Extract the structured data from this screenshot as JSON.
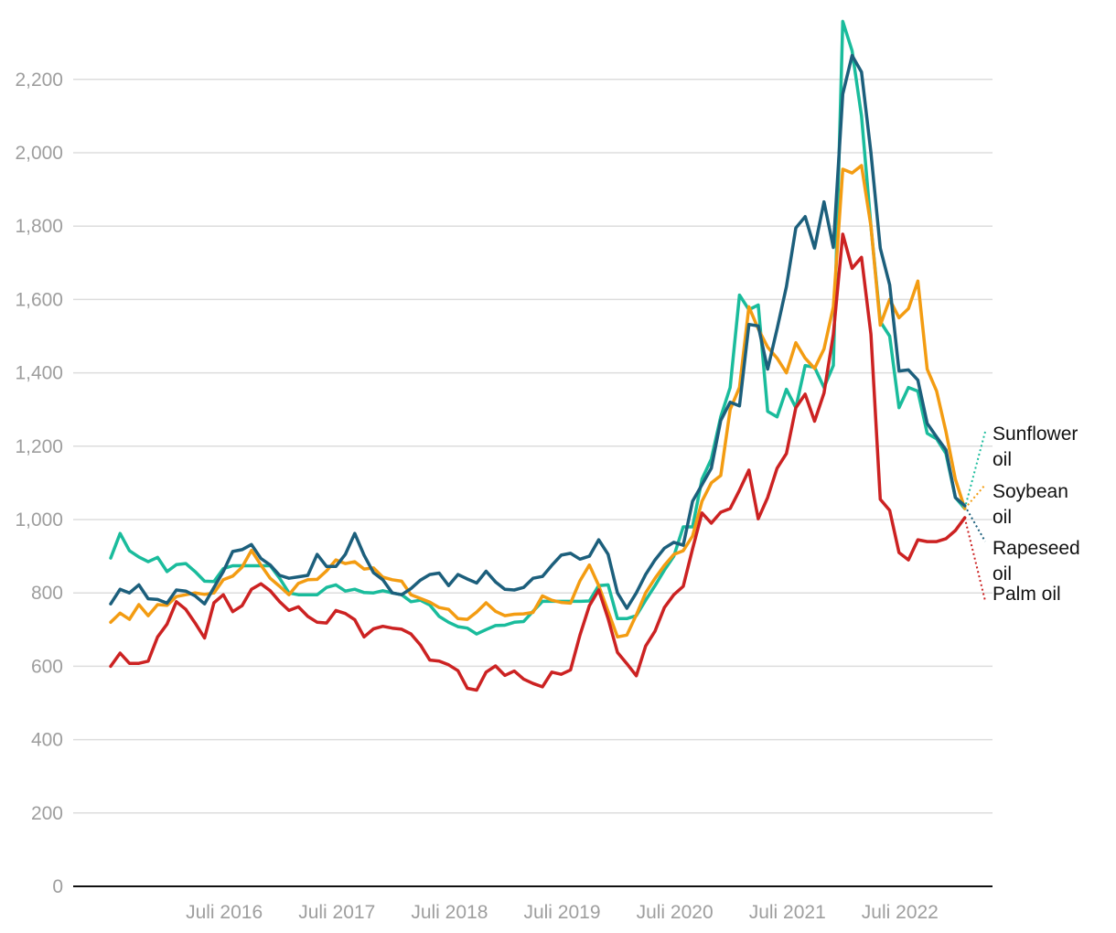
{
  "chart_data": {
    "type": "line",
    "title": "",
    "xlabel": "",
    "ylabel": "",
    "ylim": [
      0,
      2300
    ],
    "yticks": [
      0,
      200,
      400,
      600,
      800,
      1000,
      1200,
      1400,
      1600,
      1800,
      2000,
      2200
    ],
    "ytick_labels": [
      "0",
      "200",
      "400",
      "600",
      "800",
      "1,000",
      "1,200",
      "1,400",
      "1,600",
      "1,800",
      "2,000",
      "2,200"
    ],
    "x_start": "2015-07",
    "x_end": "2023-04",
    "xticks": [
      "2016-07",
      "2017-07",
      "2018-07",
      "2019-07",
      "2020-07",
      "2021-07",
      "2022-07"
    ],
    "xtick_labels": [
      "Juli 2016",
      "Juli 2017",
      "Juli 2018",
      "Juli 2019",
      "Juli 2020",
      "Juli 2021",
      "Juli 2022"
    ],
    "grid": true,
    "legend": "right, at line ends",
    "series": [
      {
        "name": "Sunflower oil",
        "color": "#1abc9c",
        "label_lines": [
          "Sunflower",
          "oil"
        ],
        "values": [
          895,
          962,
          915,
          898,
          885,
          897,
          858,
          877,
          880,
          858,
          832,
          831,
          866,
          874,
          874,
          874,
          874,
          874,
          840,
          800,
          795,
          795,
          795,
          815,
          822,
          805,
          810,
          801,
          800,
          806,
          800,
          795,
          776,
          780,
          767,
          736,
          720,
          708,
          704,
          688,
          700,
          711,
          712,
          720,
          722,
          750,
          777,
          777,
          777,
          777,
          777,
          778,
          820,
          822,
          730,
          730,
          738,
          780,
          820,
          862,
          900,
          980,
          980,
          1110,
          1165,
          1280,
          1360,
          1612,
          1572,
          1585,
          1295,
          1280,
          1355,
          1305,
          1420,
          1415,
          1360,
          1420,
          2358,
          2278,
          2100,
          1800,
          1540,
          1500,
          1305,
          1360,
          1350,
          1235,
          1220,
          1180,
          1060,
          1030
        ]
      },
      {
        "name": "Soybean oil",
        "color": "#f39c12",
        "label_lines": [
          "Soybean",
          "oil"
        ],
        "values": [
          720,
          745,
          728,
          768,
          738,
          768,
          766,
          790,
          795,
          800,
          796,
          800,
          836,
          846,
          870,
          916,
          876,
          840,
          818,
          795,
          826,
          836,
          837,
          860,
          890,
          880,
          885,
          865,
          868,
          843,
          836,
          832,
          795,
          785,
          775,
          760,
          755,
          730,
          728,
          748,
          773,
          750,
          738,
          742,
          743,
          747,
          792,
          780,
          774,
          772,
          833,
          876,
          820,
          750,
          680,
          685,
          740,
          800,
          840,
          875,
          905,
          915,
          955,
          1050,
          1100,
          1120,
          1300,
          1360,
          1580,
          1520,
          1470,
          1440,
          1400,
          1482,
          1440,
          1412,
          1465,
          1580,
          1955,
          1945,
          1965,
          1800,
          1530,
          1600,
          1550,
          1575,
          1650,
          1410,
          1350,
          1240,
          1110,
          1030
        ]
      },
      {
        "name": "Rapeseed oil",
        "color": "#1c5f7c",
        "label_lines": [
          "Rapeseed",
          "oil"
        ],
        "values": [
          770,
          810,
          800,
          822,
          784,
          782,
          772,
          808,
          805,
          792,
          770,
          815,
          858,
          913,
          918,
          932,
          894,
          876,
          848,
          840,
          844,
          848,
          905,
          872,
          872,
          905,
          962,
          903,
          855,
          836,
          800,
          795,
          812,
          835,
          850,
          854,
          820,
          850,
          838,
          827,
          859,
          830,
          810,
          808,
          815,
          840,
          845,
          875,
          903,
          908,
          892,
          900,
          945,
          905,
          800,
          758,
          800,
          850,
          890,
          922,
          938,
          930,
          1050,
          1095,
          1140,
          1270,
          1320,
          1310,
          1532,
          1528,
          1410,
          1520,
          1635,
          1795,
          1826,
          1740,
          1866,
          1742,
          2160,
          2265,
          2220,
          2000,
          1740,
          1640,
          1405,
          1408,
          1380,
          1262,
          1225,
          1190,
          1060,
          1038
        ]
      },
      {
        "name": "Palm oil",
        "color": "#cc2222",
        "label_lines": [
          "Palm oil"
        ],
        "values": [
          600,
          636,
          608,
          608,
          614,
          680,
          715,
          776,
          755,
          718,
          677,
          773,
          795,
          749,
          765,
          810,
          825,
          806,
          776,
          752,
          762,
          736,
          720,
          718,
          752,
          744,
          727,
          680,
          702,
          709,
          704,
          701,
          688,
          658,
          617,
          614,
          604,
          588,
          540,
          535,
          584,
          601,
          575,
          587,
          565,
          553,
          544,
          584,
          578,
          590,
          685,
          765,
          808,
          730,
          638,
          607,
          574,
          655,
          696,
          760,
          795,
          818,
          920,
          1018,
          990,
          1020,
          1030,
          1080,
          1135,
          1002,
          1060,
          1140,
          1180,
          1305,
          1342,
          1268,
          1345,
          1505,
          1778,
          1685,
          1715,
          1505,
          1055,
          1025,
          910,
          890,
          945,
          940,
          940,
          948,
          970,
          1005
        ]
      }
    ]
  }
}
